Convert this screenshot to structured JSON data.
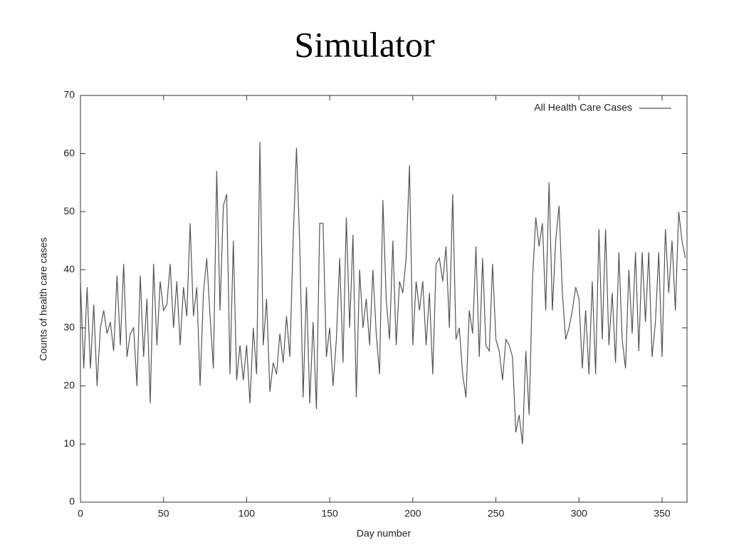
{
  "chart_data": {
    "type": "line",
    "title": "Simulator",
    "xlabel": "Day number",
    "ylabel": "Counts of health care cases",
    "xlim": [
      0,
      365
    ],
    "ylim": [
      0,
      70
    ],
    "xticks": [
      0,
      50,
      100,
      150,
      200,
      250,
      300,
      350
    ],
    "yticks": [
      0,
      10,
      20,
      30,
      40,
      50,
      60,
      70
    ],
    "grid": false,
    "legend": "top-right",
    "x": [
      0,
      2,
      4,
      6,
      8,
      10,
      12,
      14,
      16,
      18,
      20,
      22,
      24,
      26,
      28,
      30,
      32,
      34,
      36,
      38,
      40,
      42,
      44,
      46,
      48,
      50,
      52,
      54,
      56,
      58,
      60,
      62,
      64,
      66,
      68,
      70,
      72,
      74,
      76,
      78,
      80,
      82,
      84,
      86,
      88,
      90,
      92,
      94,
      96,
      98,
      100,
      102,
      104,
      106,
      108,
      110,
      112,
      114,
      116,
      118,
      120,
      122,
      124,
      126,
      128,
      130,
      132,
      134,
      136,
      138,
      140,
      142,
      144,
      146,
      148,
      150,
      152,
      154,
      156,
      158,
      160,
      162,
      164,
      166,
      168,
      170,
      172,
      174,
      176,
      178,
      180,
      182,
      184,
      186,
      188,
      190,
      192,
      194,
      196,
      198,
      200,
      202,
      204,
      206,
      208,
      210,
      212,
      214,
      216,
      218,
      220,
      222,
      224,
      226,
      228,
      230,
      232,
      234,
      236,
      238,
      240,
      242,
      244,
      246,
      248,
      250,
      252,
      254,
      256,
      258,
      260,
      262,
      264,
      266,
      268,
      270,
      272,
      274,
      276,
      278,
      280,
      282,
      284,
      286,
      288,
      290,
      292,
      294,
      296,
      298,
      300,
      302,
      304,
      306,
      308,
      310,
      312,
      314,
      316,
      318,
      320,
      322,
      324,
      326,
      328,
      330,
      332,
      334,
      336,
      338,
      340,
      342,
      344,
      346,
      348,
      350,
      352,
      354,
      356,
      358,
      360,
      362,
      364
    ],
    "series": [
      {
        "name": "All Health Care Cases",
        "color": "#555555",
        "values": [
          38,
          23,
          37,
          23,
          34,
          20,
          30,
          33,
          29,
          31,
          26,
          39,
          27,
          41,
          25,
          29,
          30,
          20,
          39,
          25,
          35,
          17,
          41,
          27,
          38,
          33,
          34,
          41,
          30,
          38,
          27,
          37,
          32,
          48,
          32,
          37,
          20,
          36,
          42,
          32,
          23,
          57,
          33,
          51,
          53,
          22,
          45,
          21,
          27,
          21,
          27,
          17,
          30,
          22,
          62,
          27,
          35,
          19,
          24,
          22,
          29,
          24,
          32,
          25,
          45,
          61,
          44,
          18,
          37,
          17,
          31,
          16,
          48,
          48,
          25,
          30,
          20,
          28,
          42,
          24,
          49,
          30,
          46,
          18,
          40,
          30,
          35,
          27,
          40,
          29,
          22,
          52,
          35,
          28,
          45,
          27,
          38,
          36,
          42,
          58,
          27,
          38,
          33,
          38,
          27,
          36,
          22,
          41,
          42,
          38,
          44,
          30,
          53,
          28,
          30,
          22,
          18,
          33,
          29,
          44,
          25,
          42,
          27,
          26,
          41,
          28,
          26,
          21,
          28,
          27,
          25,
          12,
          15,
          10,
          26,
          15,
          38,
          49,
          44,
          48,
          33,
          55,
          33,
          45,
          51,
          36,
          28,
          30,
          33,
          37,
          35,
          23,
          33,
          22,
          38,
          22,
          47,
          28,
          47,
          27,
          36,
          24,
          43,
          28,
          23,
          40,
          29,
          43,
          26,
          43,
          31,
          43,
          25,
          31,
          43,
          25,
          47,
          36,
          45,
          33,
          50,
          45,
          42
        ]
      }
    ]
  }
}
